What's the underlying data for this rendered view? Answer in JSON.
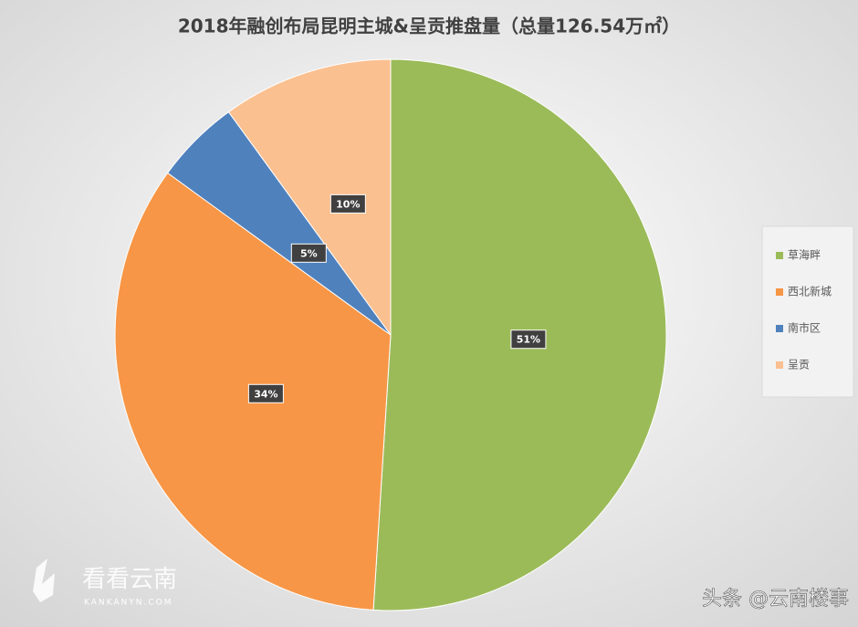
{
  "chart_data": {
    "type": "pie",
    "title": "2018年融创布局昆明主城&呈贡推盘量（总量126.54万㎡）",
    "categories": [
      "草海畔",
      "西北新城",
      "南市区",
      "呈贡"
    ],
    "values": [
      51,
      34,
      5,
      10
    ],
    "value_labels": [
      "51%",
      "34%",
      "5%",
      "10%"
    ],
    "colors": [
      "#9bbb59",
      "#f79646",
      "#4f81bd",
      "#fac090"
    ],
    "legend": "right"
  },
  "watermarks": {
    "logo_text": "看看云南",
    "logo_domain": "KANKANYN.COM",
    "source": "头条 @云南楼事"
  }
}
